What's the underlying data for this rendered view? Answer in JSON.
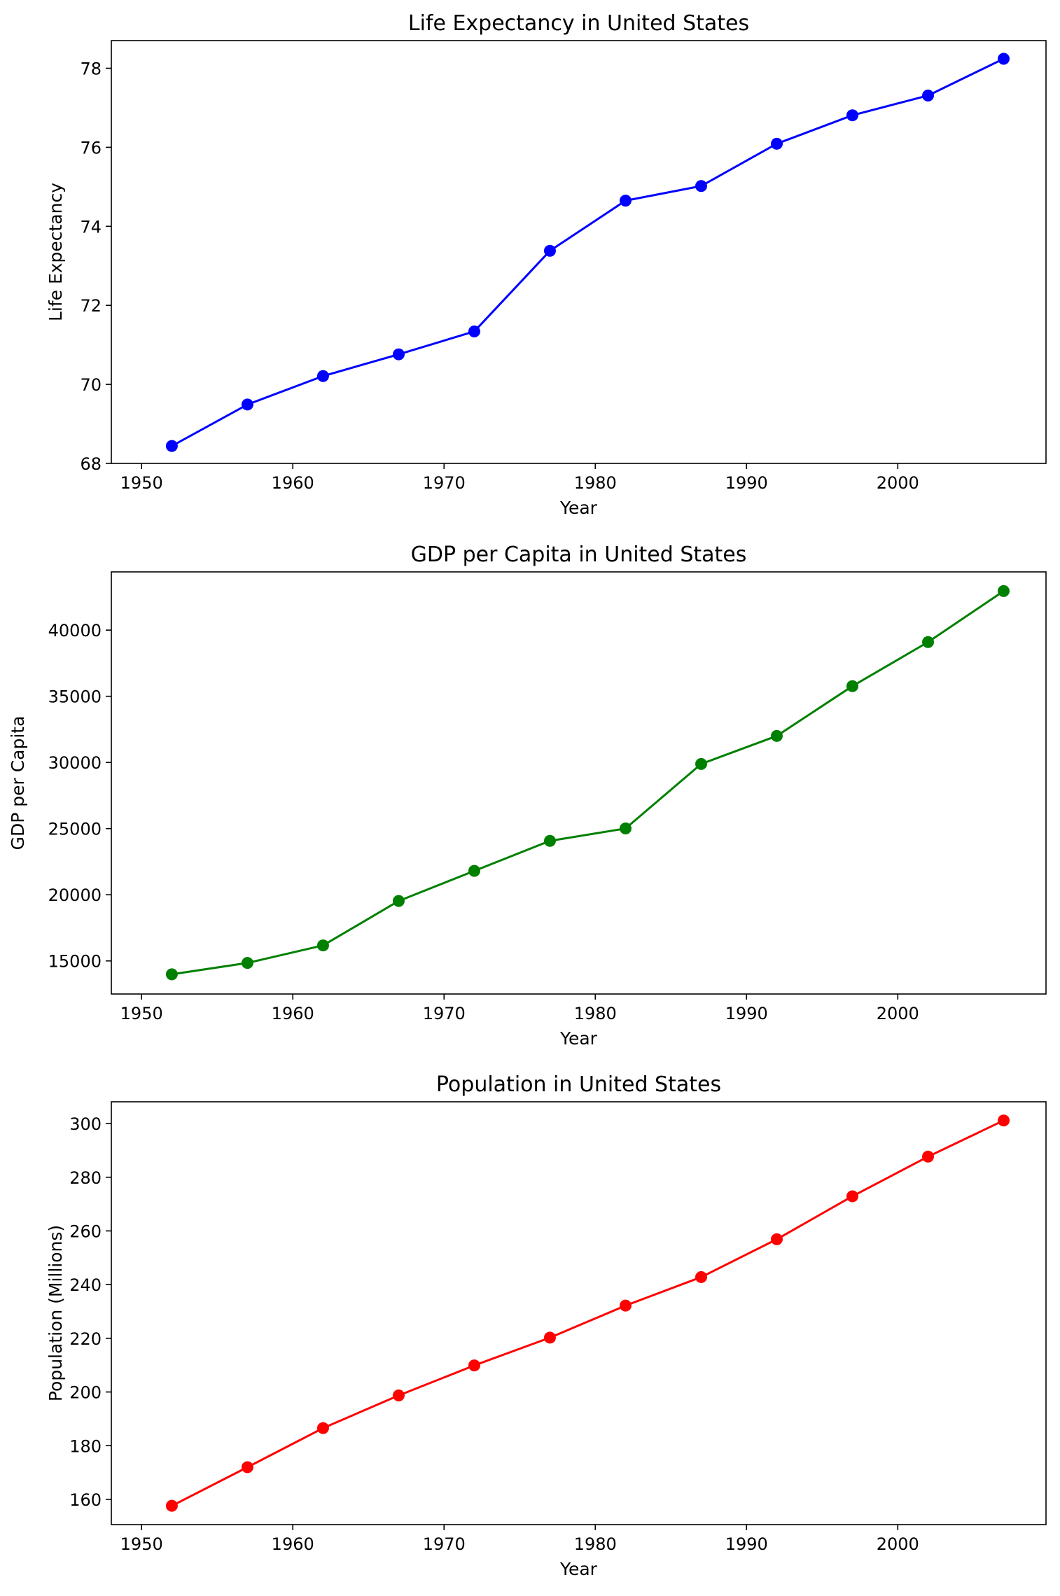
{
  "chart_data": [
    {
      "type": "line",
      "title": "Life Expectancy in United States",
      "xlabel": "Year",
      "ylabel": "Life Expectancy",
      "color": "#0000ff",
      "marker": "circle",
      "grid": false,
      "xlim": [
        1950,
        2007
      ],
      "ylim": [
        68,
        78.7
      ],
      "xticks": [
        1950,
        1960,
        1970,
        1980,
        1990,
        2000
      ],
      "yticks": [
        68,
        70,
        72,
        74,
        76,
        78
      ],
      "x": [
        1952,
        1957,
        1962,
        1967,
        1972,
        1977,
        1982,
        1987,
        1992,
        1997,
        2002,
        2007
      ],
      "y": [
        68.44,
        69.49,
        70.21,
        70.76,
        71.34,
        73.38,
        74.65,
        75.02,
        76.09,
        76.81,
        77.31,
        78.24
      ]
    },
    {
      "type": "line",
      "title": "GDP per Capita in United States",
      "xlabel": "Year",
      "ylabel": "GDP per Capita",
      "color": "#008000",
      "marker": "circle",
      "grid": false,
      "xlim": [
        1950,
        2007
      ],
      "ylim": [
        12500,
        44400
      ],
      "xticks": [
        1950,
        1960,
        1970,
        1980,
        1990,
        2000
      ],
      "yticks": [
        15000,
        20000,
        25000,
        30000,
        35000,
        40000
      ],
      "x": [
        1952,
        1957,
        1962,
        1967,
        1972,
        1977,
        1982,
        1987,
        1992,
        1997,
        2002,
        2007
      ],
      "y": [
        13990,
        14847,
        16173,
        19531,
        21806,
        24073,
        25010,
        29884,
        32004,
        35767,
        39097,
        42952
      ]
    },
    {
      "type": "line",
      "title": "Population in United States",
      "xlabel": "Year",
      "ylabel": "Population (Millions)",
      "color": "#ff0000",
      "marker": "circle",
      "grid": false,
      "xlim": [
        1950,
        2007
      ],
      "ylim": [
        150.6,
        308.1
      ],
      "xticks": [
        1950,
        1960,
        1970,
        1980,
        1990,
        2000
      ],
      "yticks": [
        160,
        180,
        200,
        220,
        240,
        260,
        280,
        300
      ],
      "x": [
        1952,
        1957,
        1962,
        1967,
        1972,
        1977,
        1982,
        1987,
        1992,
        1997,
        2002,
        2007
      ],
      "y": [
        157.6,
        171.98,
        186.54,
        198.71,
        209.9,
        220.24,
        232.19,
        242.8,
        256.89,
        272.91,
        287.68,
        301.14
      ]
    }
  ]
}
